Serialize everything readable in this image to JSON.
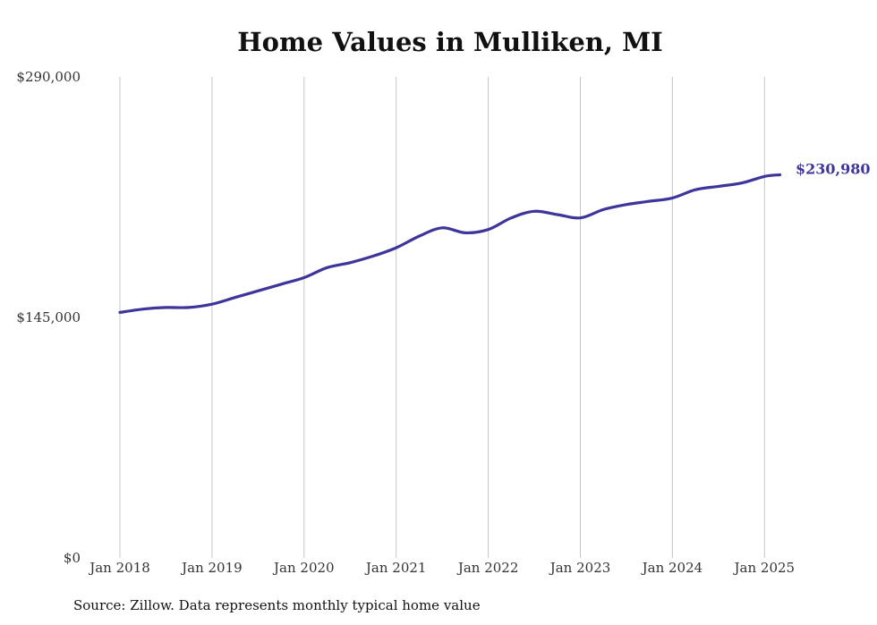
{
  "chart_data": {
    "type": "line",
    "title": "Home Values in Mulliken, MI",
    "xlabel": "",
    "ylabel": "",
    "ylim": [
      0,
      290000
    ],
    "y_ticks": [
      "$0",
      "$145,000",
      "$290,000"
    ],
    "x_ticks": [
      "Jan 2018",
      "Jan 2019",
      "Jan 2020",
      "Jan 2021",
      "Jan 2022",
      "Jan 2023",
      "Jan 2024",
      "Jan 2025"
    ],
    "grid": "vertical",
    "color": "#3d3599",
    "end_label": "$230,980",
    "series": [
      {
        "x": [
          "2018-01",
          "2018-04",
          "2018-07",
          "2018-10",
          "2019-01",
          "2019-04",
          "2019-07",
          "2019-10",
          "2020-01",
          "2020-04",
          "2020-07",
          "2020-10",
          "2021-01",
          "2021-04",
          "2021-07",
          "2021-10",
          "2022-01",
          "2022-04",
          "2022-07",
          "2022-10",
          "2023-01",
          "2023-04",
          "2023-07",
          "2023-10",
          "2024-01",
          "2024-04",
          "2024-07",
          "2024-10",
          "2025-01",
          "2025-03"
        ],
        "values": [
          148000,
          150000,
          151000,
          151000,
          153000,
          157000,
          161000,
          165000,
          169000,
          175000,
          178000,
          182000,
          187000,
          194000,
          199000,
          196000,
          198000,
          205000,
          209000,
          207000,
          205000,
          210000,
          213000,
          215000,
          217000,
          222000,
          224000,
          226000,
          230000,
          230980
        ]
      }
    ]
  },
  "source": "Source: Zillow. Data represents monthly typical home value"
}
